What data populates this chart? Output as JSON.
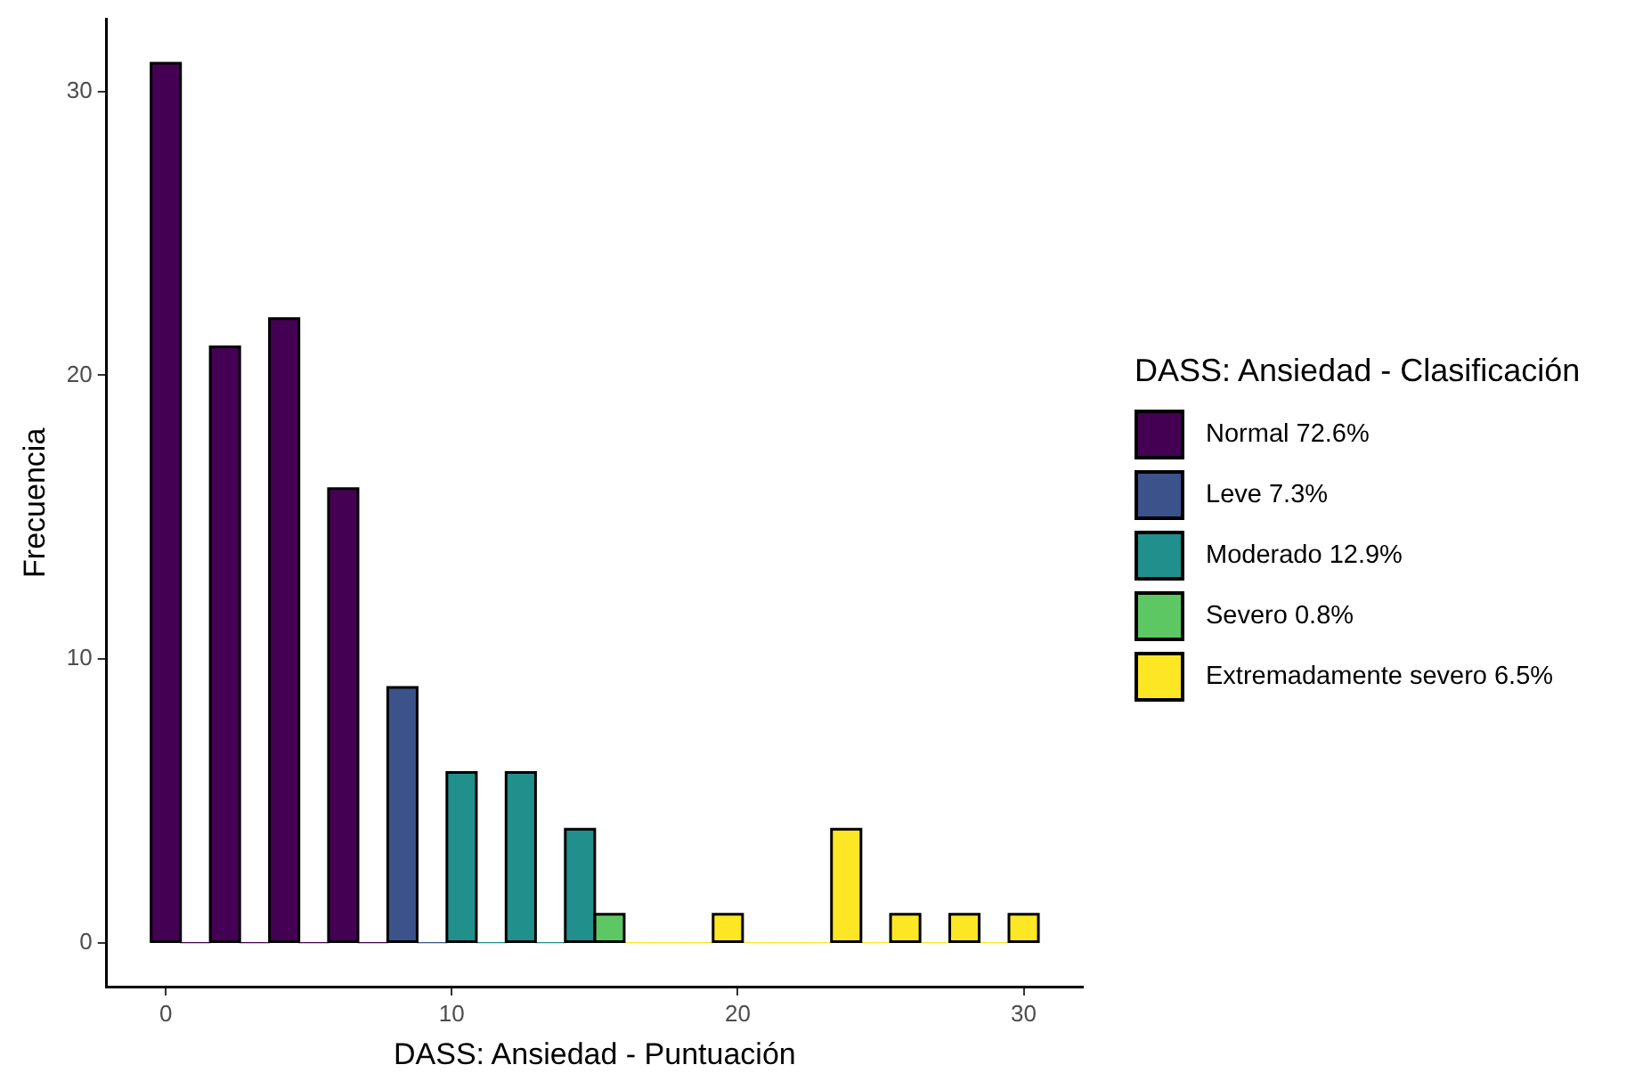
{
  "chart_data": {
    "type": "histogram",
    "xlabel": "DASS: Ansiedad - Puntuación",
    "ylabel": "Frecuencia",
    "legend_title": "DASS: Ansiedad - Clasificación",
    "legend": "right",
    "grid": false,
    "bins": [
      -0.52,
      0.52,
      1.55,
      2.59,
      3.62,
      4.66,
      5.69,
      6.72,
      7.76,
      8.79,
      9.83,
      10.86,
      11.9,
      12.93,
      13.97,
      15,
      16.03,
      17.07,
      18.1,
      19.14,
      20.17,
      21.21,
      22.24,
      23.28,
      24.31,
      25.34,
      26.38,
      27.41,
      28.45,
      29.48,
      30.52
    ],
    "series": [
      {
        "name": "Normal 72.6%",
        "color": "#440154",
        "values": [
          31,
          0,
          21,
          0,
          22,
          0,
          16,
          0,
          null,
          null,
          null,
          null,
          null,
          null,
          null,
          null,
          null,
          null,
          null,
          null,
          null,
          null,
          null,
          null,
          null,
          null,
          null,
          null,
          null,
          null
        ]
      },
      {
        "name": "Leve 7.3%",
        "color": "#3b528b",
        "values": [
          null,
          null,
          null,
          null,
          null,
          null,
          null,
          null,
          9,
          0,
          null,
          null,
          null,
          null,
          null,
          null,
          null,
          null,
          null,
          null,
          null,
          null,
          null,
          null,
          null,
          null,
          null,
          null,
          null,
          null
        ]
      },
      {
        "name": "Moderado 12.9%",
        "color": "#21908c",
        "values": [
          null,
          null,
          null,
          null,
          null,
          null,
          null,
          null,
          null,
          null,
          6,
          0,
          6,
          0,
          4,
          null,
          null,
          null,
          null,
          null,
          null,
          null,
          null,
          null,
          null,
          null,
          null,
          null,
          null,
          null
        ]
      },
      {
        "name": "Severo 0.8%",
        "color": "#5dc863",
        "values": [
          null,
          null,
          null,
          null,
          null,
          null,
          null,
          null,
          null,
          null,
          null,
          null,
          null,
          null,
          null,
          1,
          null,
          null,
          null,
          null,
          null,
          null,
          null,
          null,
          null,
          null,
          null,
          null,
          null,
          null
        ]
      },
      {
        "name": "Extremadamente severo 6.5%",
        "color": "#fde725",
        "values": [
          null,
          null,
          null,
          null,
          null,
          null,
          null,
          null,
          null,
          null,
          null,
          null,
          null,
          null,
          null,
          null,
          0,
          0,
          0,
          1,
          0,
          0,
          0,
          4,
          0,
          1,
          0,
          1,
          0,
          1
        ]
      }
    ],
    "xlim": [
      -2.07,
      32.07
    ],
    "ylim": [
      -1.55,
      32.55
    ],
    "xticks": [
      0,
      10,
      20,
      30
    ],
    "yticks": [
      0,
      10,
      20,
      30
    ]
  }
}
